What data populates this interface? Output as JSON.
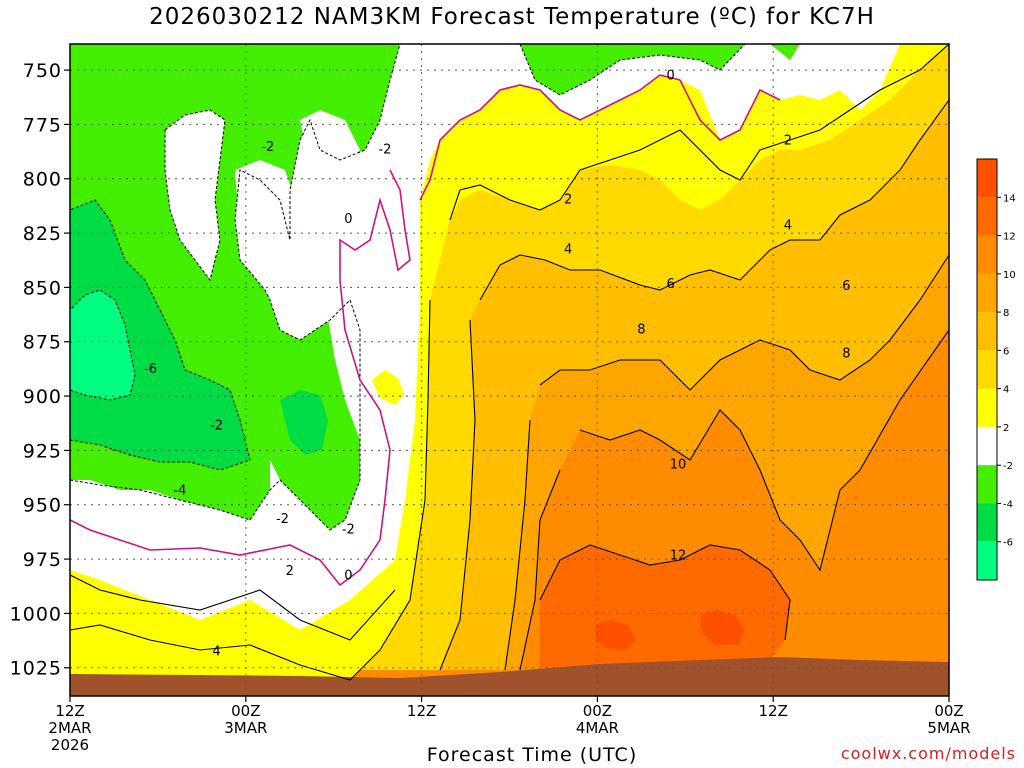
{
  "chart_data": {
    "type": "heatmap",
    "title": "2026030212 NAM3KM Forecast Temperature (ºC) for KC7H",
    "xlabel": "Forecast Time (UTC)",
    "ylabel": "",
    "credit": "coolwx.com/models",
    "y_ticks": [
      750,
      775,
      800,
      825,
      850,
      875,
      900,
      925,
      950,
      975,
      1000,
      1025
    ],
    "ylim": [
      738,
      1038
    ],
    "x_ticks": [
      {
        "hour": 0,
        "lines": [
          "12Z",
          "2MAR",
          "2026"
        ]
      },
      {
        "hour": 12,
        "lines": [
          "00Z",
          "3MAR"
        ]
      },
      {
        "hour": 24,
        "lines": [
          "12Z"
        ]
      },
      {
        "hour": 36,
        "lines": [
          "00Z",
          "4MAR"
        ]
      },
      {
        "hour": 48,
        "lines": [
          "12Z"
        ]
      },
      {
        "hour": 60,
        "lines": [
          "00Z",
          "5MAR"
        ]
      }
    ],
    "xlim": [
      0,
      60
    ],
    "colorbar_levels": [
      -8,
      -6,
      -4,
      -2,
      2,
      4,
      6,
      8,
      10,
      12,
      14,
      16
    ],
    "colorbar_labels": [
      14,
      12,
      10,
      8,
      6,
      4,
      2,
      -2,
      -4,
      -6
    ],
    "contour_labels": [
      {
        "text": "-2",
        "hour": 13.5,
        "p": 785
      },
      {
        "text": "-2",
        "hour": 21.5,
        "p": 786
      },
      {
        "text": "0",
        "hour": 19.0,
        "p": 818
      },
      {
        "text": "0",
        "hour": 41.0,
        "p": 752
      },
      {
        "text": "2",
        "hour": 34.0,
        "p": 809
      },
      {
        "text": "2",
        "hour": 49.0,
        "p": 782
      },
      {
        "text": "4",
        "hour": 34.0,
        "p": 832
      },
      {
        "text": "4",
        "hour": 49.0,
        "p": 821
      },
      {
        "text": "6",
        "hour": 41.0,
        "p": 848
      },
      {
        "text": "6",
        "hour": 53.0,
        "p": 849
      },
      {
        "text": "8",
        "hour": 39.0,
        "p": 869
      },
      {
        "text": "8",
        "hour": 53.0,
        "p": 880
      },
      {
        "text": "10",
        "hour": 41.5,
        "p": 931
      },
      {
        "text": "12",
        "hour": 41.5,
        "p": 973
      },
      {
        "text": "-6",
        "hour": 5.5,
        "p": 887
      },
      {
        "text": "-4",
        "hour": 7.5,
        "p": 943
      },
      {
        "text": "-2",
        "hour": 10.0,
        "p": 913
      },
      {
        "text": "-2",
        "hour": 14.5,
        "p": 956
      },
      {
        "text": "-2",
        "hour": 19.0,
        "p": 961
      },
      {
        "text": "0",
        "hour": 19.0,
        "p": 982
      },
      {
        "text": "2",
        "hour": 15.0,
        "p": 980
      },
      {
        "text": "4",
        "hour": 10.0,
        "p": 1017
      }
    ],
    "colors": {
      "lt_neg6": "#00ff80",
      "neg6_neg4": "#00dd44",
      "neg4_neg2": "#44ee00",
      "neg2_0": "#ffffff",
      "0_2": "#ffffff",
      "2_4": "#ffff00",
      "4_6": "#ffd900",
      "6_8": "#ffbe00",
      "8_10": "#ffa500",
      "10_12": "#ff8c00",
      "12_14": "#ff6a00",
      "14_16": "#ff5000",
      "ground": "#a0522d",
      "freezing_line": "#c71585"
    }
  }
}
